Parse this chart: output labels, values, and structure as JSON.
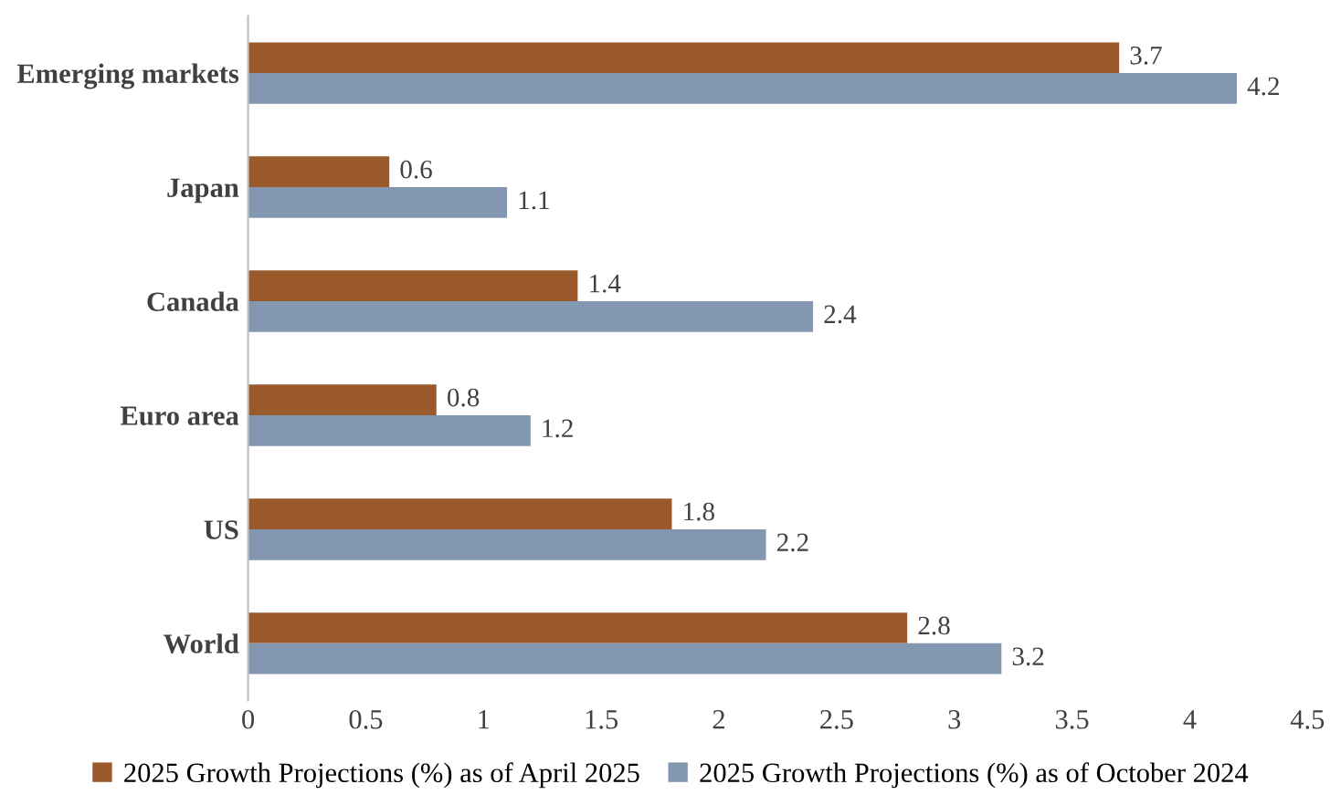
{
  "chart_data": {
    "type": "bar",
    "orientation": "horizontal",
    "categories": [
      "Emerging markets",
      "Japan",
      "Canada",
      "Euro area",
      "US",
      "World"
    ],
    "series": [
      {
        "name": "2025 Growth Projections (%) as of April 2025",
        "color": "#9b5a2c",
        "values": [
          3.7,
          0.6,
          1.4,
          0.8,
          1.8,
          2.8
        ]
      },
      {
        "name": "2025 Growth Projections (%) as of October 2024",
        "color": "#8497b0",
        "values": [
          4.2,
          1.1,
          2.4,
          1.2,
          2.2,
          3.2
        ]
      }
    ],
    "xlim": [
      0,
      4.5
    ],
    "xticks": [
      0,
      0.5,
      1,
      1.5,
      2,
      2.5,
      3,
      3.5,
      4,
      4.5
    ],
    "data_labels": true,
    "grid": false,
    "legend": "bottom"
  }
}
